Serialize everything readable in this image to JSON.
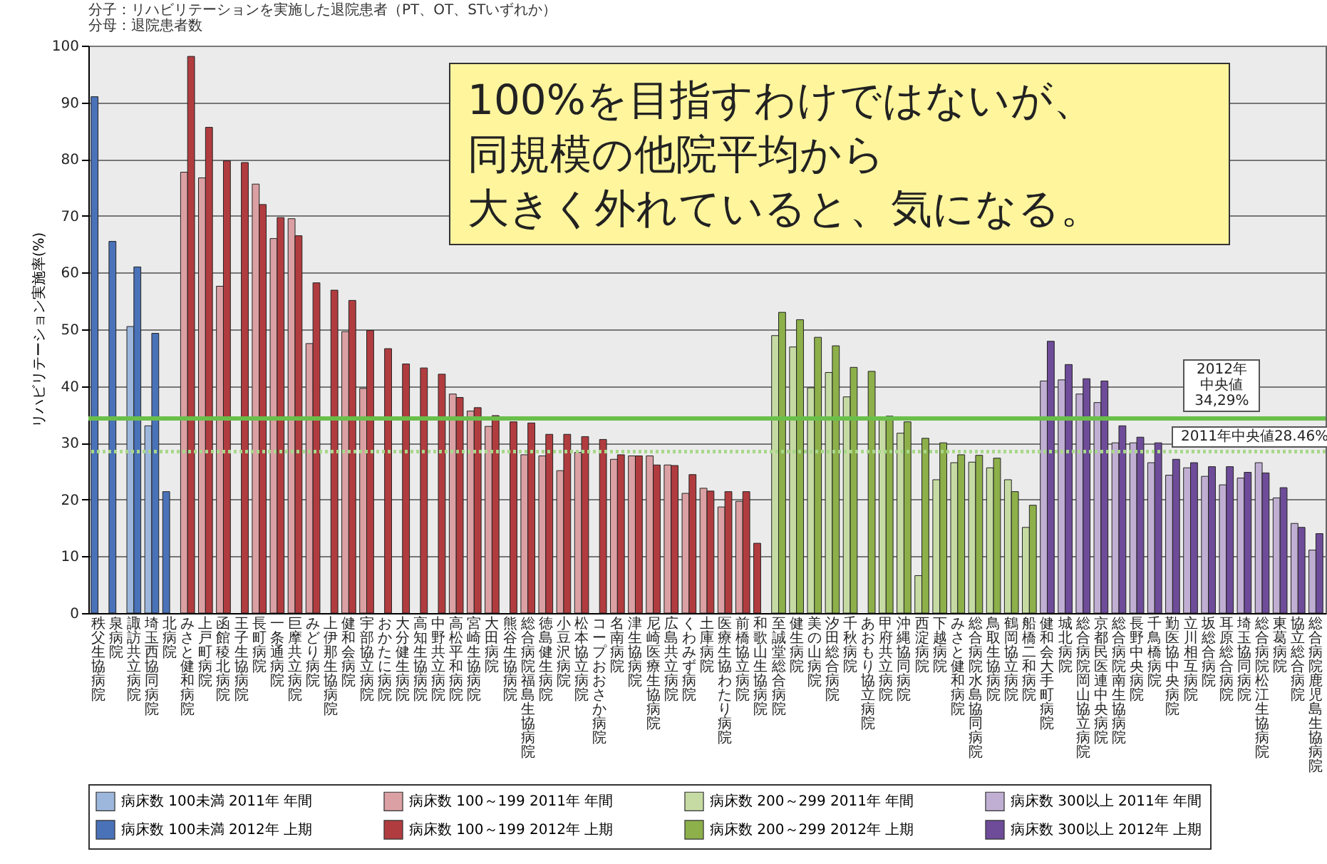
{
  "chart_data": {
    "type": "bar",
    "ylabel": "リハビリテーション実施率(%)",
    "annotations": [
      "分子：リハビリテーションを実施した退院患者（PT、OT、STいずれか）",
      "分母：退院患者数",
      "100%を目指すわけではないが、",
      "同規模の他院平均から",
      "大きく外れていると、気になる。"
    ],
    "categories": [
      "秩父生協病院",
      "泉病院",
      "諏訪共立病院",
      "埼玉西協同病院",
      "北病院",
      "みさと健和病院",
      "上戸町病院",
      "函館稜北病院",
      "王子生協病院",
      "長町病院",
      "一条通病院",
      "巨摩共立病院",
      "みどり病院",
      "上伊那生協病院",
      "健和会病院",
      "宇部協立病院",
      "おかたに病院",
      "大分健生病院",
      "高知生協病院",
      "中野共立病院",
      "高松平和病院",
      "宮崎生協病院",
      "大田病院",
      "熊谷生協病院",
      "総合病院福島生協病院",
      "徳島健生病院",
      "小豆沢病院",
      "松本協立病院",
      "コープおおさか病院",
      "名南病院",
      "津生協病院",
      "尼崎医療生協病院",
      "広島共立病院",
      "くわみず病院",
      "土庫病院",
      "医療生協わたり病院",
      "前橋協立病院",
      "和歌山生協病院",
      "至誠堂総合病院",
      "健生病院",
      "美の山病院",
      "汐田総合病院",
      "千秋病院",
      "あおもり協立病院",
      "甲府共立病院",
      "沖縄協同病院",
      "西淀病院",
      "下越病院",
      "みさと健和病院",
      "総合病院水島協同病院",
      "鳥取生協病院",
      "鶴岡協立病院",
      "船橋二和病院",
      "健和会大手町病院",
      "城北病院",
      "総合病院岡山協立病院",
      "京都民医連中央病院",
      "総合病院南生協病院",
      "長野中央病院",
      "千鳥橋病院",
      "勤医協中央病院",
      "立川相互病院",
      "坂総合病院",
      "耳原総合病院",
      "埼玉協同病院",
      "総合病院松江生協病院",
      "東葛病院",
      "協立総合病院",
      "総合病院鹿児島生協病院"
    ],
    "series": [
      {
        "name": "病床数 100未満 2011年 年間",
        "color": "#9db7dc",
        "values": [
          null,
          null,
          50.5,
          33,
          null,
          null,
          null,
          null,
          null,
          null,
          null,
          null,
          null,
          null,
          null,
          null,
          null,
          null,
          null,
          null,
          null,
          null,
          null,
          null,
          null,
          null,
          null,
          null,
          null,
          null,
          null,
          null,
          null,
          null,
          null,
          null,
          null,
          null,
          null,
          null,
          null,
          null,
          null,
          null,
          null,
          null,
          null,
          null,
          null,
          null,
          null,
          null,
          null,
          null,
          null,
          null,
          null,
          null,
          null,
          null,
          null,
          null,
          null,
          null,
          null,
          null,
          null,
          null,
          null
        ]
      },
      {
        "name": "病床数 100～199 2011年 年間",
        "color": "#dba0a3",
        "values": [
          null,
          null,
          null,
          null,
          null,
          77.7,
          76.7,
          57.6,
          null,
          75.6,
          66,
          69.5,
          47.5,
          null,
          49.6,
          39.6,
          null,
          null,
          null,
          null,
          38.6,
          35.6,
          32.9,
          null,
          27.9,
          27.7,
          25.1,
          28.3,
          null,
          27.1,
          27.7,
          27.7,
          26.1,
          21.1,
          22,
          18.7,
          19.7,
          null,
          null,
          null,
          null,
          null,
          null,
          null,
          null,
          null,
          null,
          null,
          null,
          null,
          null,
          null,
          null,
          null,
          null,
          null,
          null,
          null,
          null,
          null,
          null,
          null,
          null,
          null,
          null,
          null,
          null,
          null,
          null
        ]
      },
      {
        "name": "病床数 200～299 2011年 年間",
        "color": "#c6dba3",
        "values": [
          null,
          null,
          null,
          null,
          null,
          null,
          null,
          null,
          null,
          null,
          null,
          null,
          null,
          null,
          null,
          null,
          null,
          null,
          null,
          null,
          null,
          null,
          null,
          null,
          null,
          null,
          null,
          null,
          null,
          null,
          null,
          null,
          null,
          null,
          null,
          null,
          null,
          null,
          48.9,
          46.9,
          39.7,
          42.4,
          38.1,
          null,
          34.3,
          31.7,
          6.6,
          23.5,
          26.5,
          26.6,
          25.6,
          23.5,
          15.1,
          null,
          null,
          null,
          null,
          null,
          null,
          null,
          null,
          null,
          null,
          null,
          null,
          null,
          null,
          null,
          null
        ]
      },
      {
        "name": "病床数 300以上 2011年 年間",
        "color": "#c0afd3",
        "values": [
          null,
          null,
          null,
          null,
          null,
          null,
          null,
          null,
          null,
          null,
          null,
          null,
          null,
          null,
          null,
          null,
          null,
          null,
          null,
          null,
          null,
          null,
          null,
          null,
          null,
          null,
          null,
          null,
          null,
          null,
          null,
          null,
          null,
          null,
          null,
          null,
          null,
          null,
          null,
          null,
          null,
          null,
          null,
          null,
          null,
          null,
          null,
          null,
          null,
          null,
          null,
          null,
          null,
          40.9,
          41.1,
          38.6,
          37.1,
          30,
          30,
          26.5,
          24.3,
          25.6,
          24.1,
          22.6,
          23.8,
          26.5,
          20.3,
          15.8,
          11.1
        ]
      },
      {
        "name": "病床数 100未満 2012年 上期",
        "color": "#4a72b8",
        "values": [
          91,
          65.5,
          61,
          49.3,
          21.4,
          null,
          null,
          null,
          null,
          null,
          null,
          null,
          null,
          null,
          null,
          null,
          null,
          null,
          null,
          null,
          null,
          null,
          null,
          null,
          null,
          null,
          null,
          null,
          null,
          null,
          null,
          null,
          null,
          null,
          null,
          null,
          null,
          null,
          null,
          null,
          null,
          null,
          null,
          null,
          null,
          null,
          null,
          null,
          null,
          null,
          null,
          null,
          null,
          null,
          null,
          null,
          null,
          null,
          null,
          null,
          null,
          null,
          null,
          null,
          null,
          null,
          null,
          null,
          null
        ]
      },
      {
        "name": "病床数 100～199 2012年 上期",
        "color": "#b13c3f",
        "values": [
          null,
          null,
          null,
          null,
          null,
          98.1,
          85.6,
          79.7,
          79.4,
          72,
          69.7,
          66.5,
          58.2,
          56.9,
          55.1,
          49.8,
          46.6,
          43.9,
          43.2,
          42.1,
          38,
          36.2,
          34.8,
          33.7,
          33.5,
          31.5,
          31.5,
          31.1,
          30.6,
          27.9,
          27.7,
          26.1,
          26,
          24.4,
          21.5,
          21.4,
          21.4,
          12.3,
          null,
          null,
          null,
          null,
          null,
          null,
          null,
          null,
          null,
          null,
          null,
          null,
          null,
          null,
          null,
          null,
          null,
          null,
          null,
          null,
          null,
          null,
          null,
          null,
          null,
          null,
          null,
          null,
          null,
          null,
          null
        ]
      },
      {
        "name": "病床数 200～299 2012年 上期",
        "color": "#8db04a",
        "values": [
          null,
          null,
          null,
          null,
          null,
          null,
          null,
          null,
          null,
          null,
          null,
          null,
          null,
          null,
          null,
          null,
          null,
          null,
          null,
          null,
          null,
          null,
          null,
          null,
          null,
          null,
          null,
          null,
          null,
          null,
          null,
          null,
          null,
          null,
          null,
          null,
          null,
          null,
          53,
          51.7,
          48.6,
          47.1,
          43.3,
          42.6,
          34.7,
          33.7,
          30.8,
          30,
          27.9,
          27.8,
          27.3,
          21.4,
          19,
          null,
          null,
          null,
          null,
          null,
          null,
          null,
          null,
          null,
          null,
          null,
          null,
          null,
          null,
          null,
          null
        ]
      },
      {
        "name": "病床数 300以上 2012年 上期",
        "color": "#6e4c99",
        "values": [
          null,
          null,
          null,
          null,
          null,
          null,
          null,
          null,
          null,
          null,
          null,
          null,
          null,
          null,
          null,
          null,
          null,
          null,
          null,
          null,
          null,
          null,
          null,
          null,
          null,
          null,
          null,
          null,
          null,
          null,
          null,
          null,
          null,
          null,
          null,
          null,
          null,
          null,
          null,
          null,
          null,
          null,
          null,
          null,
          null,
          null,
          null,
          null,
          null,
          null,
          null,
          null,
          null,
          47.9,
          43.8,
          41.3,
          40.9,
          33,
          31,
          30,
          27.1,
          26.5,
          25.8,
          25.8,
          24.8,
          24.7,
          22.1,
          15.1,
          14
        ]
      }
    ],
    "ylim": [
      0,
      100
    ],
    "yticks": [
      0,
      10,
      20,
      30,
      40,
      50,
      60,
      70,
      80,
      90,
      100
    ],
    "grid": "y",
    "legend": "bottom",
    "ref_lines": [
      {
        "axis": "y",
        "value": 34.29,
        "label": "2012年中央値34,29%",
        "color": "#6abf4b",
        "line_style": "solid"
      },
      {
        "axis": "y",
        "value": 28.46,
        "label": "2011年中央値28.46%",
        "color": "#a8d88a",
        "line_style": "dotted"
      }
    ]
  }
}
